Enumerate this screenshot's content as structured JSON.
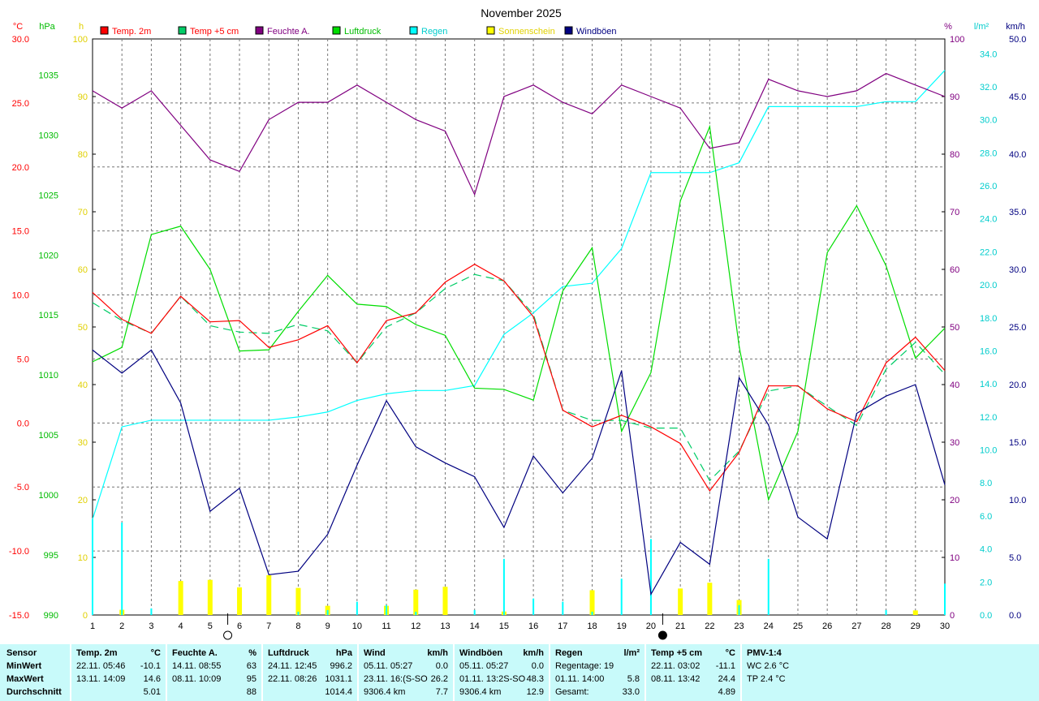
{
  "title": "November 2025",
  "axis_units": {
    "temp": "°C",
    "pressure": "hPa",
    "sunshine": "h",
    "humidity": "%",
    "rain": "l/m²",
    "wind": "km/h"
  },
  "colors": {
    "temp2m": "#ff0000",
    "temp5cm": "#00cc66",
    "humidity": "#800080",
    "pressure": "#00dd00",
    "rain": "#00ffff",
    "sunshine": "#ffff00",
    "windgusts": "#000080",
    "axis_temp": "#ff0000",
    "axis_pressure": "#00bb00",
    "axis_sun": "#e0d000",
    "axis_hum": "#800080",
    "axis_rain": "#00cccc",
    "axis_wind": "#000080"
  },
  "legend": [
    {
      "label": "Temp. 2m",
      "color": "#ff0000",
      "text_color": "#ff0000"
    },
    {
      "label": "Temp +5 cm",
      "color": "#00cc66",
      "text_color": "#ff0000"
    },
    {
      "label": "Feuchte A.",
      "color": "#800080",
      "text_color": "#800080"
    },
    {
      "label": "Luftdruck",
      "color": "#00dd00",
      "text_color": "#00bb00"
    },
    {
      "label": "Regen",
      "color": "#00ffff",
      "text_color": "#00cccc"
    },
    {
      "label": "Sonnenschein",
      "color": "#ffff00",
      "text_color": "#e0d000"
    },
    {
      "label": "Windböen",
      "color": "#000080",
      "text_color": "#000080"
    }
  ],
  "chart_data": {
    "type": "line",
    "title": "November 2025",
    "x": [
      1,
      2,
      3,
      4,
      5,
      6,
      7,
      8,
      9,
      10,
      11,
      12,
      13,
      14,
      15,
      16,
      17,
      18,
      19,
      20,
      21,
      22,
      23,
      24,
      25,
      26,
      27,
      28,
      29,
      30
    ],
    "xlim": [
      1,
      30
    ],
    "axes": {
      "temp": {
        "unit": "°C",
        "ylim": [
          -15,
          30
        ],
        "ticks": [
          30.0,
          25.0,
          20.0,
          15.0,
          10.0,
          5.0,
          0.0,
          -5.0,
          -10.0,
          -15.0
        ],
        "tick_labels": [
          "30.0",
          "25.0",
          "20.0",
          "15.0",
          "10.0",
          "5.0",
          "0.0",
          "-5.0",
          "-10.0",
          "-15.0"
        ]
      },
      "pressure": {
        "unit": "hPa",
        "ylim": [
          990,
          1038
        ],
        "ticks": [
          1035,
          1030,
          1025,
          1020,
          1015,
          1010,
          1005,
          1000,
          995,
          990
        ]
      },
      "sunshine": {
        "unit": "h",
        "ylim": [
          0,
          100
        ],
        "ticks": [
          100,
          90,
          80,
          70,
          60,
          50,
          40,
          30,
          20,
          10,
          0
        ]
      },
      "humidity": {
        "unit": "%",
        "ylim": [
          0,
          100
        ],
        "ticks": [
          100,
          90,
          80,
          70,
          60,
          50,
          40,
          30,
          20,
          10,
          0
        ]
      },
      "rain": {
        "unit": "l/m²",
        "ylim": [
          0,
          34.9
        ],
        "ticks": [
          34.0,
          32.0,
          30.0,
          28.0,
          26.0,
          24.0,
          22.0,
          20.0,
          18.0,
          16.0,
          14.0,
          12.0,
          10.0,
          8.0,
          6.0,
          4.0,
          2.0,
          0.0
        ],
        "tick_labels": [
          "34.0",
          "32.0",
          "30.0",
          "28.0",
          "26.0",
          "24.0",
          "22.0",
          "20.0",
          "18.0",
          "16.0",
          "14.0",
          "12.0",
          "10.0",
          "8.0",
          "6.0",
          "4.0",
          "2.0",
          "0.0"
        ]
      },
      "wind": {
        "unit": "km/h",
        "ylim": [
          0,
          50
        ],
        "ticks": [
          50,
          45,
          40,
          35,
          30,
          25,
          20,
          15,
          10,
          5,
          0
        ],
        "tick_labels": [
          "50.0",
          "45.0",
          "40.0",
          "35.0",
          "30.0",
          "25.0",
          "20.0",
          "15.0",
          "10.0",
          "5.0",
          "0.0"
        ]
      }
    },
    "series": [
      {
        "name": "Temp. 2m",
        "axis": "temp",
        "color": "#ff0000",
        "values": [
          10.2,
          8.1,
          7.0,
          9.9,
          7.9,
          8.0,
          5.9,
          6.5,
          7.6,
          4.7,
          8.0,
          8.6,
          11.0,
          12.4,
          11.1,
          8.3,
          1.0,
          -0.3,
          0.6,
          -0.3,
          -1.6,
          -5.3,
          -2.3,
          2.9,
          2.9,
          1.1,
          0.1,
          4.7,
          6.7,
          4.1
        ]
      },
      {
        "name": "Temp +5 cm",
        "axis": "temp",
        "color": "#00cc66",
        "dashed": true,
        "values": [
          9.4,
          8.0,
          7.0,
          9.9,
          7.6,
          7.1,
          7.0,
          7.7,
          7.2,
          4.7,
          7.5,
          8.6,
          10.5,
          11.6,
          11.1,
          8.5,
          1.0,
          0.2,
          0.2,
          -0.4,
          -0.4,
          -4.5,
          -2.2,
          2.5,
          2.9,
          1.3,
          -0.2,
          4.2,
          6.3,
          3.8
        ]
      },
      {
        "name": "Feuchte A.",
        "axis": "humidity",
        "color": "#800080",
        "values": [
          91,
          88,
          91,
          85,
          79,
          77,
          86,
          89,
          89,
          92,
          89,
          86,
          84,
          73,
          90,
          92,
          89,
          87,
          92,
          90,
          88,
          81,
          82,
          93,
          91,
          90,
          91,
          94,
          92,
          90
        ]
      },
      {
        "name": "Luftdruck",
        "axis": "pressure",
        "color": "#00dd00",
        "values": [
          1011.1,
          1012.3,
          1021.7,
          1022.4,
          1018.8,
          1012.0,
          1012.1,
          1015.3,
          1018.3,
          1015.9,
          1015.7,
          1014.2,
          1013.3,
          1008.9,
          1008.8,
          1007.9,
          1017.0,
          1020.6,
          1005.3,
          1010.2,
          1024.5,
          1030.7,
          1012.4,
          999.6,
          1005.3,
          1020.2,
          1024.1,
          1019.1,
          1011.4,
          1013.9
        ]
      },
      {
        "name": "Regen",
        "axis": "rain",
        "color": "#00ffff",
        "values": [
          5.8,
          11.4,
          11.8,
          11.8,
          11.8,
          11.8,
          11.8,
          12.0,
          12.3,
          13.0,
          13.4,
          13.6,
          13.6,
          13.9,
          17.0,
          18.3,
          19.9,
          20.1,
          22.2,
          26.8,
          26.8,
          26.8,
          27.4,
          30.8,
          30.8,
          30.8,
          30.8,
          31.1,
          31.1,
          33.0
        ]
      },
      {
        "name": "Windböen",
        "axis": "wind",
        "color": "#000080",
        "values": [
          23.0,
          21.0,
          23.0,
          18.4,
          9.0,
          11.0,
          3.5,
          3.8,
          7.0,
          13.0,
          18.6,
          14.6,
          13.2,
          12.0,
          7.6,
          13.8,
          10.6,
          13.6,
          21.2,
          1.8,
          6.3,
          4.4,
          20.6,
          16.5,
          8.5,
          6.6,
          17.5,
          19.0,
          20.0,
          11.3
        ]
      }
    ],
    "bars": [
      {
        "name": "Sonnenschein",
        "axis": "sunshine",
        "color": "#ffff00",
        "values": [
          0,
          0.9,
          0,
          5.9,
          6.1,
          4.8,
          6.9,
          4.7,
          1.6,
          0,
          1.6,
          4.4,
          4.9,
          0,
          0.6,
          0,
          0,
          4.3,
          0,
          0,
          4.6,
          5.6,
          2.6,
          0,
          0,
          0,
          0,
          0,
          0.8,
          0
        ]
      },
      {
        "name": "Regen (täglich)",
        "axis": "rain",
        "color": "#00ffff",
        "values": [
          5.8,
          5.6,
          0.4,
          0,
          0,
          0,
          0,
          0.2,
          0.3,
          0.8,
          0.6,
          0.2,
          0,
          0.3,
          3.4,
          1.0,
          0.8,
          0.2,
          2.2,
          4.6,
          0,
          0,
          0.6,
          3.4,
          0,
          0,
          0,
          0.3,
          0,
          1.9
        ]
      }
    ],
    "moon_markers": [
      {
        "day": 5.6,
        "phase": "full"
      },
      {
        "day": 20.4,
        "phase": "new"
      }
    ],
    "grid": true
  },
  "stats": {
    "row_labels": [
      "Sensor",
      "MinWert",
      "MaxWert",
      "Durchschnitt"
    ],
    "columns": [
      {
        "title": "Temp. 2m",
        "unit": "°C",
        "rows": [
          [
            "22.11.  05:46",
            "-10.1"
          ],
          [
            "13.11.  14:09",
            "14.6"
          ],
          [
            "",
            "5.01"
          ]
        ]
      },
      {
        "title": "Feuchte A.",
        "unit": "%",
        "rows": [
          [
            "14.11.  08:55",
            "63"
          ],
          [
            "08.11.  10:09",
            "95"
          ],
          [
            "",
            "88"
          ]
        ]
      },
      {
        "title": "Luftdruck",
        "unit": "hPa",
        "rows": [
          [
            "24.11.  12:45",
            "996.2"
          ],
          [
            "22.11.  08:26",
            "1031.1"
          ],
          [
            "",
            "1014.4"
          ]
        ]
      },
      {
        "title": "Wind",
        "unit": "km/h",
        "rows": [
          [
            "05.11.  05:27",
            "0.0"
          ],
          [
            "23.11.  16:(S-SO",
            "26.2"
          ],
          [
            "9306.4 km",
            "7.7"
          ]
        ]
      },
      {
        "title": "Windböen",
        "unit": "km/h",
        "rows": [
          [
            "05.11.  05:27",
            "0.0"
          ],
          [
            "01.11.  13:2S-SO",
            "48.3"
          ],
          [
            "9306.4 km",
            "12.9"
          ]
        ]
      },
      {
        "title": "Regen",
        "unit": "l/m²",
        "rows": [
          [
            "Regentage: 19",
            ""
          ],
          [
            "01.11.  14:00",
            "5.8"
          ],
          [
            "Gesamt:",
            "33.0"
          ]
        ]
      },
      {
        "title": "Temp +5 cm",
        "unit": "°C",
        "rows": [
          [
            "22.11.  03:02",
            "-11.1"
          ],
          [
            "08.11.  13:42",
            "24.4"
          ],
          [
            "",
            "4.89"
          ]
        ]
      },
      {
        "title": "PMV-1:4",
        "unit": "",
        "rows": [
          [
            "WC 2.6 °C",
            ""
          ],
          [
            "TP 2.4 °C",
            ""
          ],
          [
            "",
            ""
          ]
        ]
      }
    ]
  }
}
